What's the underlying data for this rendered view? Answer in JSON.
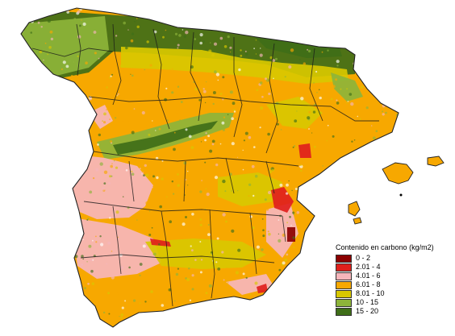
{
  "legend": {
    "title": "Contenido en carbono (kg/m2)",
    "classes": [
      {
        "label": "0 - 2",
        "color": "#8b0000"
      },
      {
        "label": "2.01 - 4",
        "color": "#e0201c"
      },
      {
        "label": "4.01 - 6",
        "color": "#f6b6bb"
      },
      {
        "label": "6.01 - 8",
        "color": "#f7a800"
      },
      {
        "label": "8.01 - 10",
        "color": "#d8c800"
      },
      {
        "label": "10 - 15",
        "color": "#8db43a"
      },
      {
        "label": "15 - 20",
        "color": "#3f6e18"
      }
    ]
  },
  "colors": {
    "background": "#ffffff",
    "boundary": "#1a1a1a",
    "coast": "#222222"
  }
}
